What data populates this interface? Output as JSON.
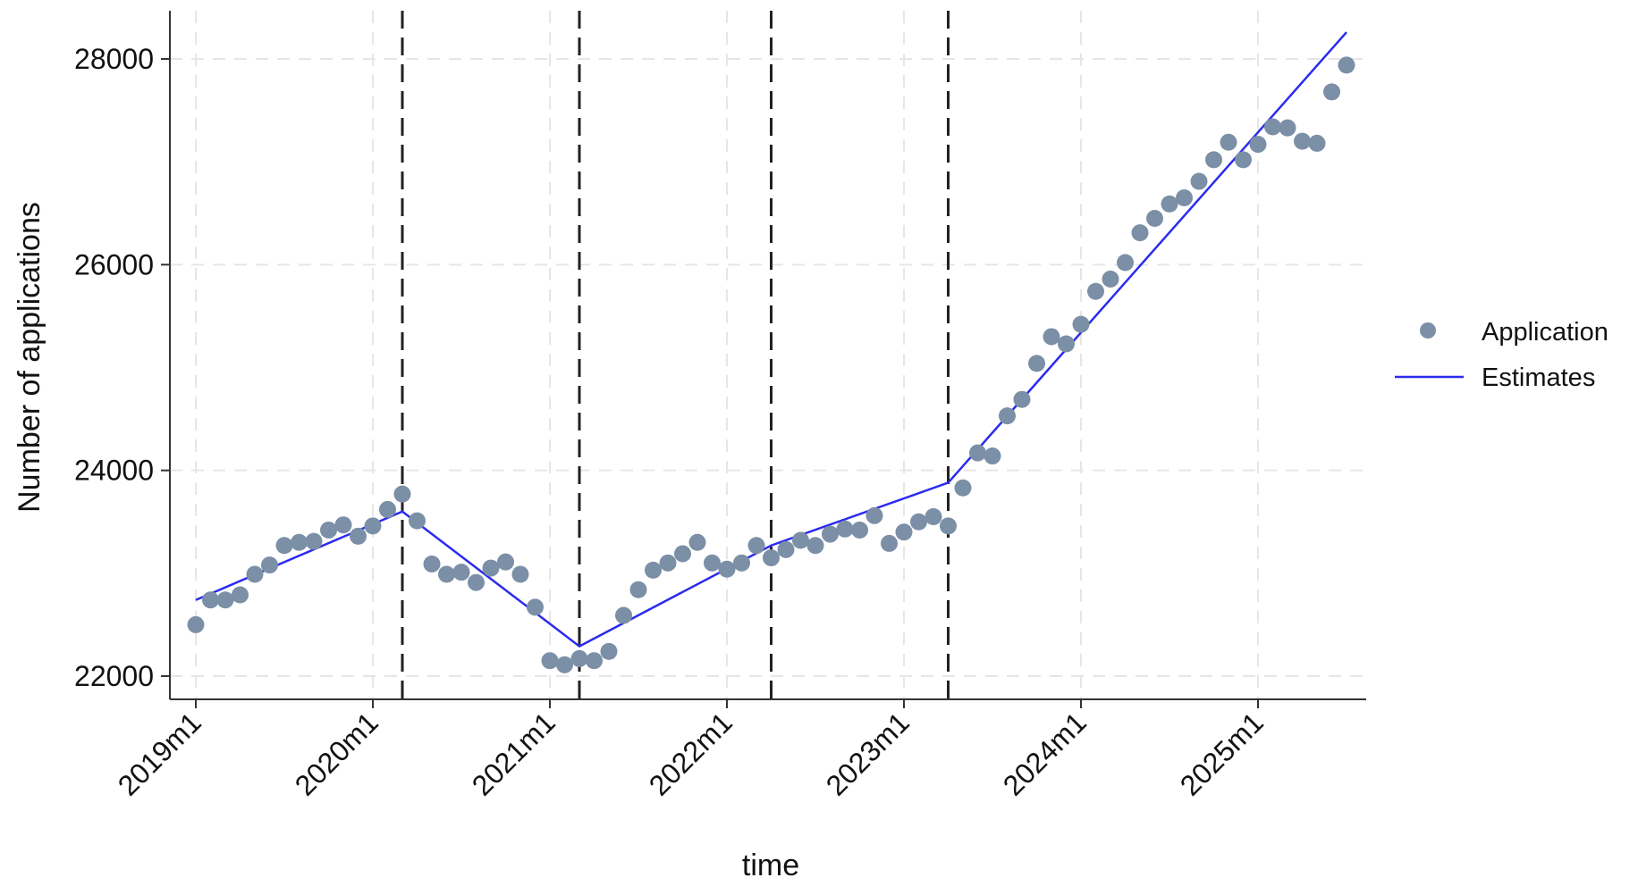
{
  "chart_data": {
    "type": "scatter",
    "xlabel": "time",
    "ylabel": "Number of applications",
    "x_ticks": [
      "2019m1",
      "2020m1",
      "2021m1",
      "2022m1",
      "2023m1",
      "2024m1",
      "2025m1"
    ],
    "x_tick_index": [
      0,
      12,
      24,
      36,
      48,
      60,
      72
    ],
    "xlim": [
      0,
      79
    ],
    "y_ticks": [
      22000,
      24000,
      26000,
      28000
    ],
    "ylim": [
      21800,
      28500
    ],
    "grid": true,
    "legend_position": "right",
    "vertical_lines_at_index": [
      14,
      26,
      39,
      51
    ],
    "colors": {
      "points": "#7b8fa6",
      "estimates": "#2b2bef",
      "vlines": "#222222",
      "grid": "#e6e6e6",
      "axis": "#333333"
    },
    "series": [
      {
        "name": "Application",
        "kind": "points",
        "x_index": [
          0,
          1,
          2,
          3,
          4,
          5,
          6,
          7,
          8,
          9,
          10,
          11,
          12,
          13,
          14,
          15,
          16,
          17,
          18,
          19,
          20,
          21,
          22,
          23,
          24,
          25,
          26,
          27,
          28,
          29,
          30,
          31,
          32,
          33,
          34,
          35,
          36,
          37,
          38,
          39,
          40,
          41,
          42,
          43,
          44,
          45,
          46,
          47,
          48,
          49,
          50,
          51,
          52,
          53,
          54,
          55,
          56,
          57,
          58,
          59,
          60,
          61,
          62,
          63,
          64,
          65,
          66,
          67,
          68,
          69,
          70,
          71,
          72,
          73,
          74,
          75,
          76,
          77,
          78
        ],
        "values": [
          22500,
          22740,
          22740,
          22790,
          22990,
          23080,
          23270,
          23300,
          23310,
          23420,
          23470,
          23360,
          23460,
          23620,
          23770,
          23510,
          23090,
          22990,
          23010,
          22910,
          23050,
          23110,
          22990,
          22670,
          22150,
          22110,
          22170,
          22150,
          22240,
          22590,
          22840,
          23030,
          23100,
          23190,
          23300,
          23100,
          23040,
          23100,
          23270,
          23150,
          23230,
          23320,
          23270,
          23380,
          23430,
          23420,
          23560,
          23290,
          23400,
          23500,
          23550,
          23460,
          23830,
          24170,
          24140,
          24530,
          24690,
          25040,
          25300,
          25230,
          25420,
          25740,
          25860,
          26020,
          26310,
          26450,
          26590,
          26650,
          26810,
          27020,
          27190,
          27020,
          27170,
          27340,
          27330,
          27200,
          27180,
          27680,
          27940
        ]
      },
      {
        "name": "Estimates",
        "kind": "line",
        "x_index": [
          0,
          14,
          26,
          39,
          51,
          78
        ],
        "values": [
          22740,
          23600,
          22290,
          23270,
          23880,
          28260
        ]
      }
    ]
  }
}
